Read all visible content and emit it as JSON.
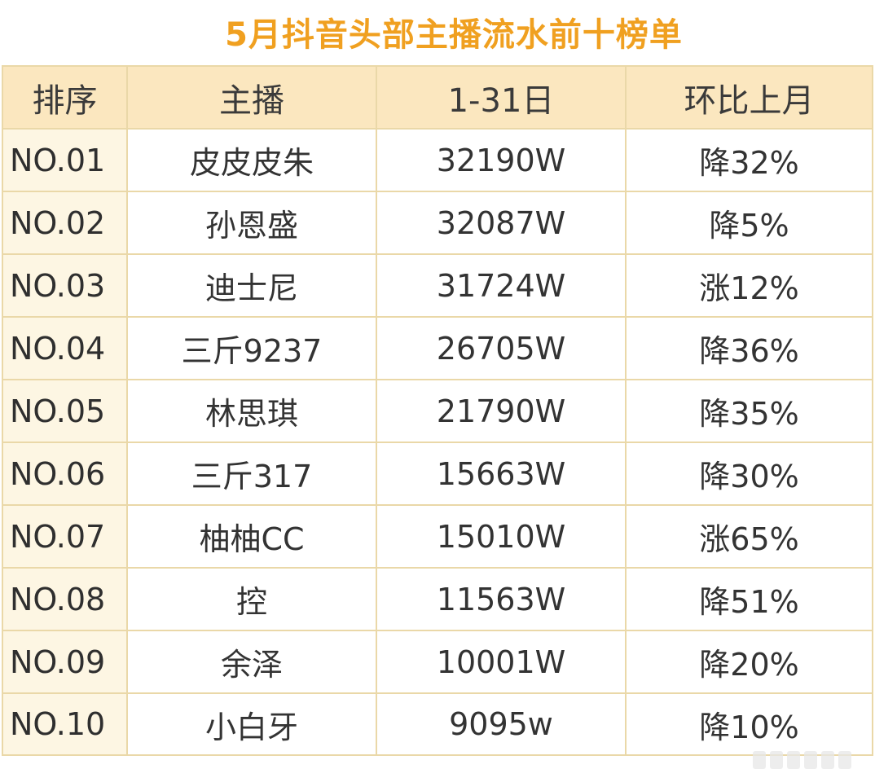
{
  "title": "5月抖音头部主播流水前十榜单",
  "table": {
    "headers": [
      "排序",
      "主播",
      "1-31日",
      "环比上月"
    ],
    "rows": [
      {
        "rank": "NO.01",
        "anchor": "皮皮皮朱",
        "revenue": "32190W",
        "mom": "降32%"
      },
      {
        "rank": "NO.02",
        "anchor": "孙恩盛",
        "revenue": "32087W",
        "mom": "降5%"
      },
      {
        "rank": "NO.03",
        "anchor": "迪士尼",
        "revenue": "31724W",
        "mom": "涨12%"
      },
      {
        "rank": "NO.04",
        "anchor": "三斤9237",
        "revenue": "26705W",
        "mom": "降36%"
      },
      {
        "rank": "NO.05",
        "anchor": "林思琪",
        "revenue": "21790W",
        "mom": "降35%"
      },
      {
        "rank": "NO.06",
        "anchor": "三斤317",
        "revenue": "15663W",
        "mom": "降30%"
      },
      {
        "rank": "NO.07",
        "anchor": "柚柚CC",
        "revenue": "15010W",
        "mom": "涨65%"
      },
      {
        "rank": "NO.08",
        "anchor": "控",
        "revenue": "11563W",
        "mom": "降51%"
      },
      {
        "rank": "NO.09",
        "anchor": "余泽",
        "revenue": "10001W",
        "mom": "降20%"
      },
      {
        "rank": "NO.10",
        "anchor": "小白牙",
        "revenue": "9095w",
        "mom": "降10%"
      }
    ]
  },
  "colors": {
    "title": "#f0a020",
    "header_bg": "#fbe7bf",
    "rank_bg": "#fdf6e3",
    "border": "#ead8a8"
  }
}
